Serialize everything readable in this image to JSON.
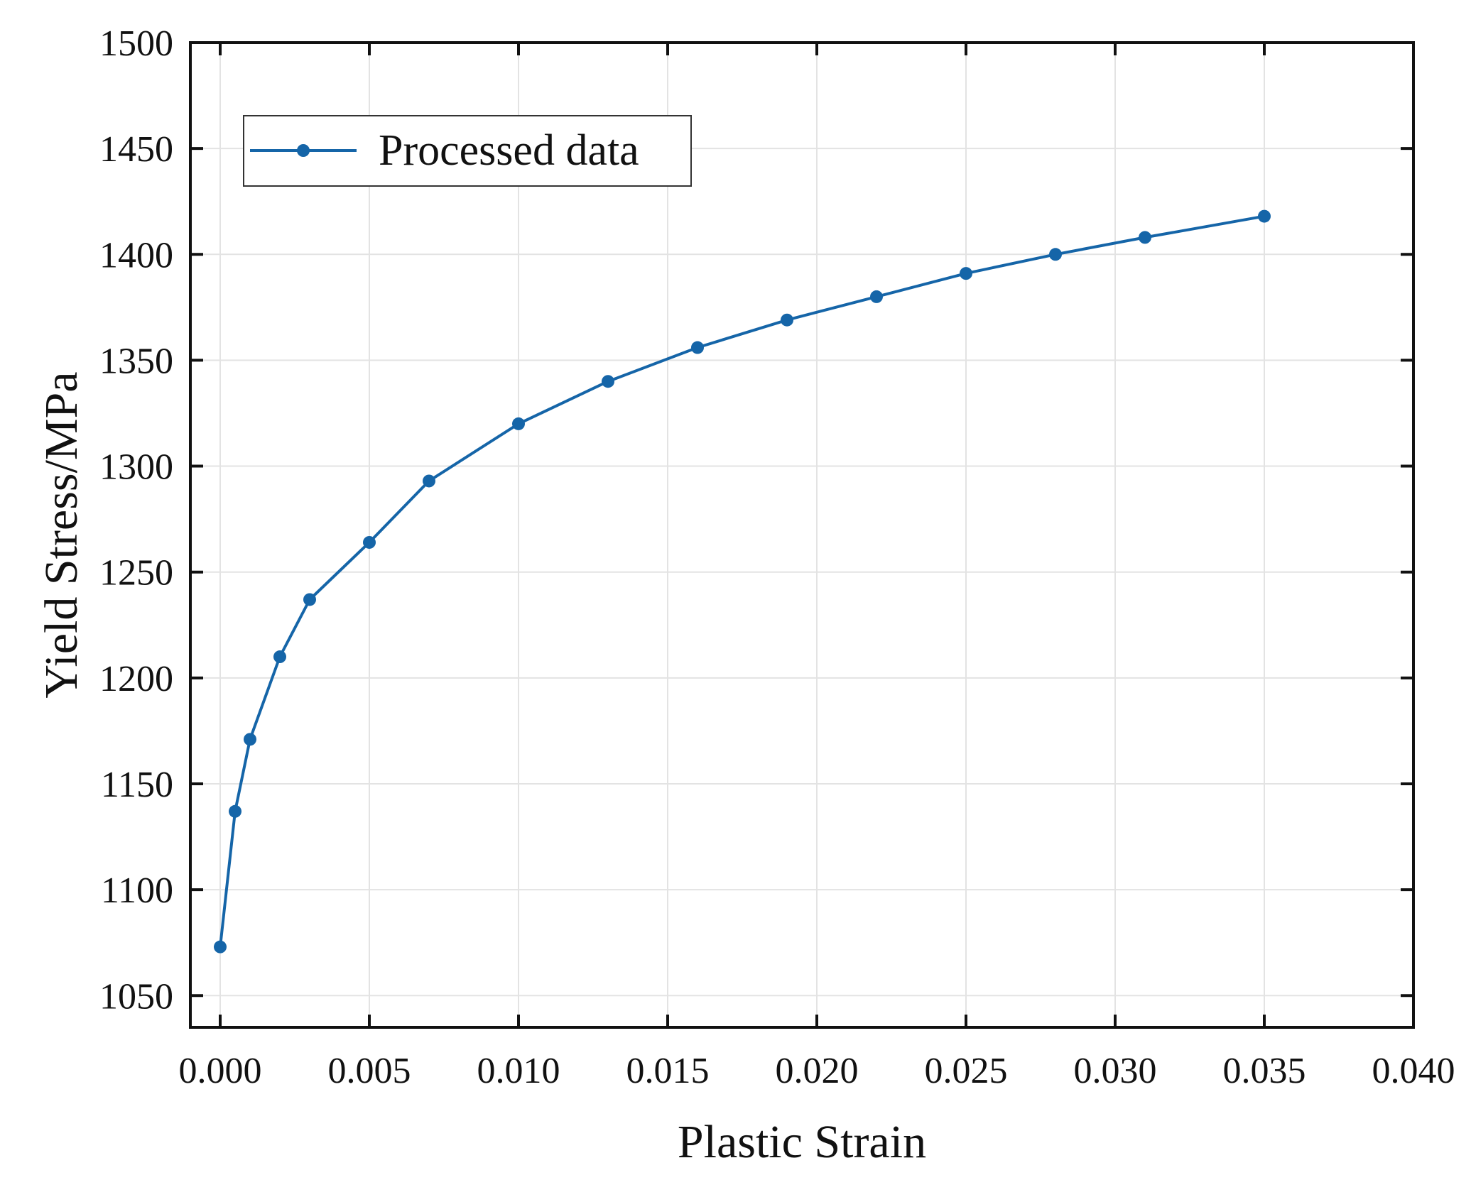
{
  "chart_data": {
    "type": "line",
    "xlabel": "Plastic Strain",
    "ylabel": "Yield Stress/MPa",
    "xlim": [
      -0.001,
      0.04
    ],
    "ylim": [
      1035,
      1500
    ],
    "xticks": [
      0.0,
      0.005,
      0.01,
      0.015,
      0.02,
      0.025,
      0.03,
      0.035,
      0.04
    ],
    "xtick_labels": [
      "0.000",
      "0.005",
      "0.010",
      "0.015",
      "0.020",
      "0.025",
      "0.030",
      "0.035",
      "0.040"
    ],
    "yticks": [
      1050,
      1100,
      1150,
      1200,
      1250,
      1300,
      1350,
      1400,
      1450,
      1500
    ],
    "ytick_labels": [
      "1050",
      "1100",
      "1150",
      "1200",
      "1250",
      "1300",
      "1350",
      "1400",
      "1450",
      "1500"
    ],
    "grid": true,
    "legend_position": "top-left",
    "series": [
      {
        "name": "Processed data",
        "color": "#1565a8",
        "marker": "circle",
        "x": [
          0.0,
          0.0005,
          0.001,
          0.002,
          0.003,
          0.005,
          0.007,
          0.01,
          0.013,
          0.016,
          0.019,
          0.022,
          0.025,
          0.028,
          0.031,
          0.035
        ],
        "y": [
          1073,
          1137,
          1171,
          1210,
          1237,
          1264,
          1293,
          1320,
          1340,
          1356,
          1369,
          1380,
          1391,
          1400,
          1408,
          1418
        ]
      }
    ]
  }
}
